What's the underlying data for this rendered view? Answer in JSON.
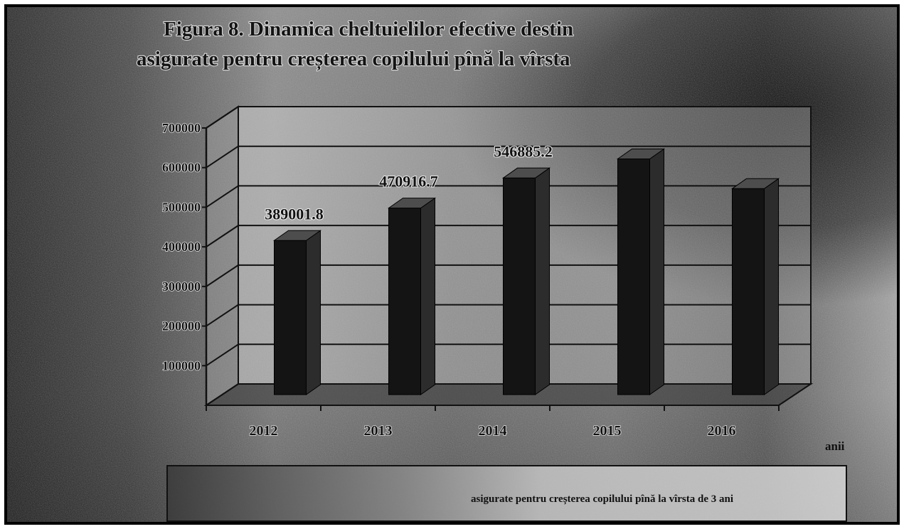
{
  "chart_data": {
    "type": "bar",
    "style": "3d-column",
    "title_lines": [
      "Figura 8. Dinamica cheltuielilor efective destin",
      "asigurate pentru creșterea copilului pînă la vîrsta"
    ],
    "categories": [
      "2012",
      "2013",
      "2014",
      "2015",
      "2016"
    ],
    "series": [
      {
        "name": "asigurate pentru creșterea copilului pînă la vîrsta de 3 ani",
        "values": [
          389001.8,
          470916.7,
          546885.2,
          595000,
          520000
        ],
        "labels": [
          "389001.8",
          "470916.7",
          "546885.2",
          "",
          ""
        ]
      }
    ],
    "xlabel": "anii",
    "ylabel": "",
    "ylim": [
      0,
      700000
    ],
    "yticks": [
      100000,
      200000,
      300000,
      400000,
      500000,
      600000,
      700000
    ],
    "grid": true,
    "legend": "bottom"
  },
  "colors": {
    "bar_front": "#141414",
    "bar_side": "#2c2c2c",
    "bar_top": "#4d4d4d",
    "grid": "#111111",
    "frame": "#000000"
  }
}
